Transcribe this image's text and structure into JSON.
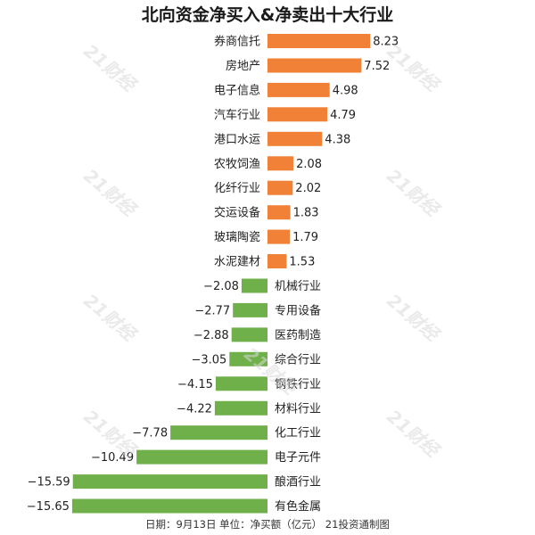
{
  "title": "北向资金净买入&净卖出十大行业",
  "footer": "日期：9月13日 单位：净买额（亿元） 21投资通制图",
  "watermark": "21财经",
  "colors": {
    "positive": "#f08136",
    "negative": "#6fb04a"
  },
  "chart_data": {
    "type": "bar",
    "orientation": "horizontal",
    "title": "北向资金净买入&净卖出十大行业",
    "unit": "亿元",
    "categories": [
      "券商信托",
      "房地产",
      "电子信息",
      "汽车行业",
      "港口水运",
      "农牧饲渔",
      "化纤行业",
      "交运设备",
      "玻璃陶瓷",
      "水泥建材",
      "机械行业",
      "专用设备",
      "医药制造",
      "综合行业",
      "钢铁行业",
      "材料行业",
      "化工行业",
      "电子元件",
      "酿酒行业",
      "有色金属"
    ],
    "values": [
      8.23,
      7.52,
      4.98,
      4.79,
      4.38,
      2.08,
      2.02,
      1.83,
      1.79,
      1.53,
      -2.08,
      -2.77,
      -2.88,
      -3.05,
      -4.15,
      -4.22,
      -7.78,
      -10.49,
      -15.59,
      -15.65
    ],
    "value_labels": [
      "8.23",
      "7.52",
      "4.98",
      "4.79",
      "4.38",
      "2.08",
      "2.02",
      "1.83",
      "1.79",
      "1.53",
      "−2.08",
      "−2.77",
      "−2.88",
      "−3.05",
      "−4.15",
      "−4.22",
      "−7.78",
      "−10.49",
      "−15.59",
      "−15.65"
    ],
    "xlim": [
      -15.65,
      8.23
    ],
    "grid": false,
    "legend": false
  }
}
